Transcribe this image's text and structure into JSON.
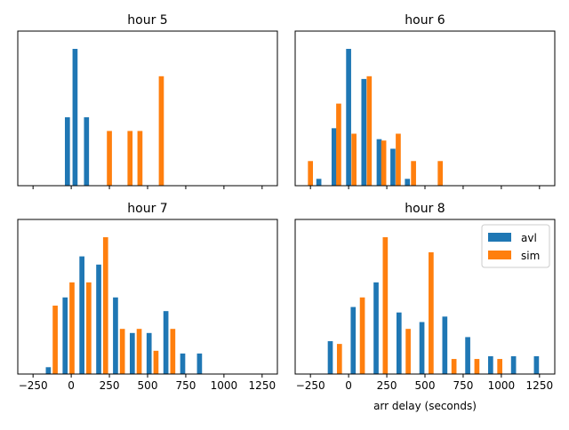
{
  "chart_data": [
    {
      "type": "bar",
      "title": "hour 5",
      "xlabel": "",
      "ylabel": "",
      "xlim": [
        -350,
        1350
      ],
      "ylim": [
        0,
        1.13
      ],
      "series": [
        {
          "name": "avl",
          "color": "#1f77b4",
          "x": [
            -25,
            25,
            100
          ],
          "values": [
            0.5,
            1.0,
            0.5
          ]
        },
        {
          "name": "sim",
          "color": "#ff7f0e",
          "x": [
            250,
            385,
            450,
            590
          ],
          "values": [
            0.4,
            0.4,
            0.4,
            0.8
          ]
        }
      ]
    },
    {
      "type": "bar",
      "title": "hour 6",
      "xlabel": "",
      "ylabel": "",
      "xlim": [
        -350,
        1350
      ],
      "ylim": [
        0,
        1.13
      ],
      "series": [
        {
          "name": "avl",
          "color": "#1f77b4",
          "x": [
            -195,
            -95,
            0,
            100,
            200,
            290,
            385
          ],
          "values": [
            0.05,
            0.42,
            1.0,
            0.78,
            0.34,
            0.27,
            0.05
          ]
        },
        {
          "name": "sim",
          "color": "#ff7f0e",
          "x": [
            -250,
            -65,
            35,
            135,
            230,
            325,
            425,
            600
          ],
          "values": [
            0.18,
            0.6,
            0.38,
            0.8,
            0.33,
            0.38,
            0.18,
            0.18
          ]
        }
      ]
    },
    {
      "type": "bar",
      "title": "hour 7",
      "xlabel": "",
      "ylabel": "",
      "xlim": [
        -350,
        1350
      ],
      "ylim": [
        0,
        1.13
      ],
      "x_ticks": [
        -250,
        0,
        250,
        500,
        750,
        1000,
        1250
      ],
      "series": [
        {
          "name": "avl",
          "color": "#1f77b4",
          "x": [
            -150,
            -40,
            70,
            180,
            290,
            400,
            510,
            620,
            730,
            840
          ],
          "values": [
            0.05,
            0.56,
            0.86,
            0.8,
            0.56,
            0.3,
            0.3,
            0.46,
            0.15,
            0.15
          ]
        },
        {
          "name": "sim",
          "color": "#ff7f0e",
          "x": [
            -105,
            5,
            115,
            225,
            335,
            445,
            555,
            665
          ],
          "values": [
            0.5,
            0.67,
            0.67,
            1.0,
            0.33,
            0.33,
            0.17,
            0.33
          ]
        }
      ]
    },
    {
      "type": "bar",
      "title": "hour 8",
      "xlabel": "arr delay (seconds)",
      "ylabel": "",
      "xlim": [
        -350,
        1350
      ],
      "ylim": [
        0,
        1.13
      ],
      "x_ticks": [
        -250,
        0,
        250,
        500,
        750,
        1000,
        1250
      ],
      "legend": {
        "position": "top-right",
        "entries": [
          "avl",
          "sim"
        ]
      },
      "series": [
        {
          "name": "avl",
          "color": "#1f77b4",
          "x": [
            -120,
            30,
            180,
            330,
            480,
            630,
            780,
            930,
            1080,
            1230
          ],
          "values": [
            0.24,
            0.49,
            0.67,
            0.45,
            0.38,
            0.42,
            0.27,
            0.13,
            0.13,
            0.13
          ]
        },
        {
          "name": "sim",
          "color": "#ff7f0e",
          "x": [
            -60,
            90,
            240,
            390,
            540,
            690,
            840,
            990
          ],
          "values": [
            0.22,
            0.56,
            1.0,
            0.33,
            0.89,
            0.11,
            0.11,
            0.11
          ]
        }
      ]
    }
  ]
}
